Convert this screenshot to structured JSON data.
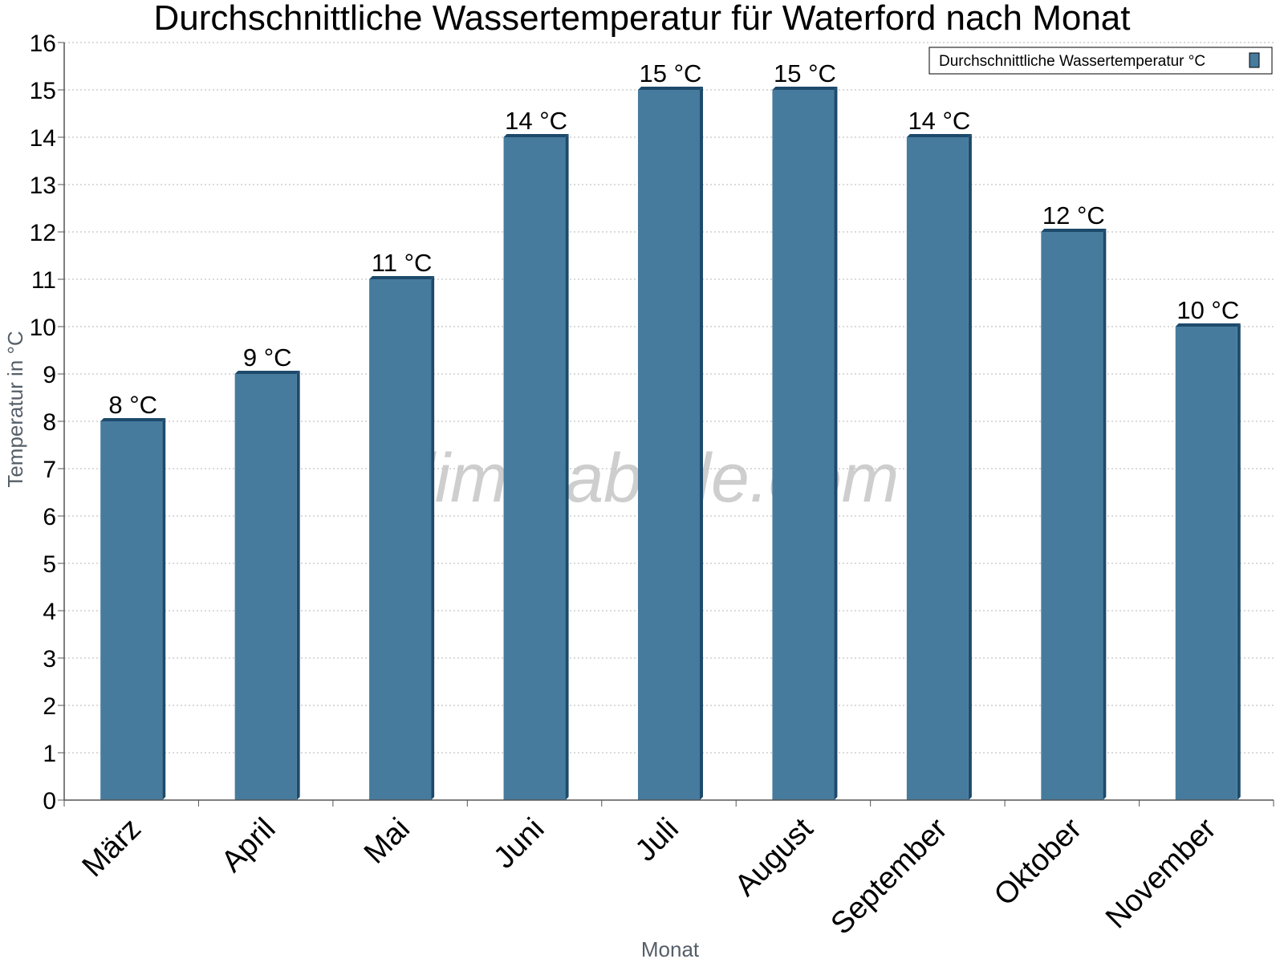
{
  "colors": {
    "bar_face": "#467b9d",
    "bar_shade": "#1d4a6b",
    "grid": "#b4b4b4",
    "axis": "#555555"
  },
  "watermark": "klimatabelle.com",
  "chart_data": {
    "type": "bar",
    "title": "Durchschnittliche Wassertemperatur für Waterford nach Monat",
    "xlabel": "Monat",
    "ylabel": "Temperatur in °C",
    "categories": [
      "März",
      "April",
      "Mai",
      "Juni",
      "Juli",
      "August",
      "September",
      "Oktober",
      "November"
    ],
    "series": [
      {
        "name": "Durchschnittliche Wassertemperatur °C",
        "values": [
          8,
          9,
          11,
          14,
          15,
          15,
          14,
          12,
          10
        ],
        "labels": [
          "8 °C",
          "9 °C",
          "11 °C",
          "14 °C",
          "15 °C",
          "15 °C",
          "14 °C",
          "12 °C",
          "10 °C"
        ]
      }
    ],
    "ylim": [
      0,
      16
    ],
    "yticks": [
      0,
      1,
      2,
      3,
      4,
      5,
      6,
      7,
      8,
      9,
      10,
      11,
      12,
      13,
      14,
      15,
      16
    ],
    "grid": true,
    "legend_position": "top-right"
  }
}
